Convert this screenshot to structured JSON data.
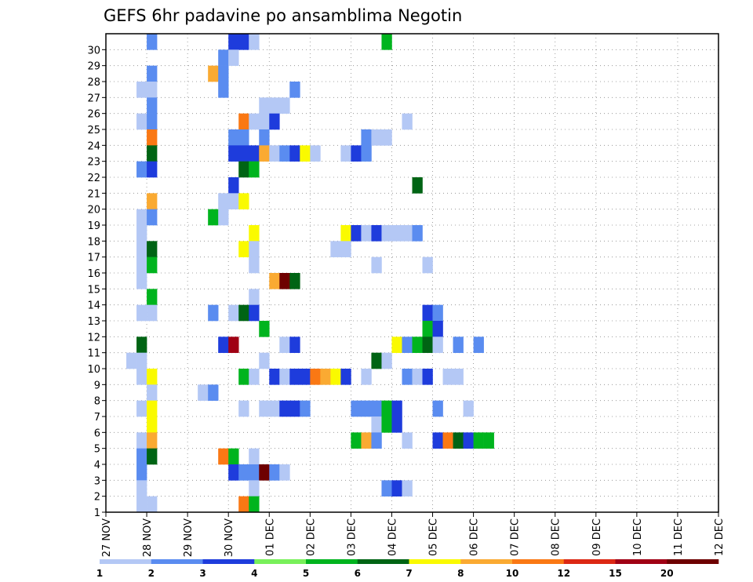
{
  "chart_data": {
    "type": "heatmap",
    "title": "GEFS 6hr padavine po ansamblima Negotin",
    "xlabel": "",
    "ylabel": "",
    "x_tick_labels": [
      "27 NOV",
      "28 NOV",
      "29 NOV",
      "30 NOV",
      "01 DEC",
      "02 DEC",
      "03 DEC",
      "04 DEC",
      "05 DEC",
      "06 DEC",
      "07 DEC",
      "08 DEC",
      "09 DEC",
      "10 DEC",
      "11 DEC",
      "12 DEC"
    ],
    "y_tick_labels": [
      "1",
      "2",
      "3",
      "4",
      "5",
      "6",
      "7",
      "8",
      "9",
      "10",
      "11",
      "12",
      "13",
      "14",
      "15",
      "16",
      "17",
      "18",
      "19",
      "20",
      "21",
      "22",
      "23",
      "24",
      "25",
      "26",
      "27",
      "28",
      "29",
      "30"
    ],
    "xlim": [
      0,
      60
    ],
    "ylim": [
      0,
      30
    ],
    "time_step_hours": 6,
    "grid": true,
    "colorbar": {
      "boundaries": [
        "1",
        "2",
        "3",
        "4",
        "5",
        "6",
        "7",
        "8",
        "10",
        "12",
        "15",
        "20"
      ],
      "colors": [
        "#b4c8f5",
        "#5a8cf0",
        "#1e3cdc",
        "#78f05a",
        "#00b41e",
        "#006414",
        "#fafa00",
        "#faaa32",
        "#fa7814",
        "#dc2814",
        "#a00014",
        "#6e0000"
      ]
    },
    "cells": [
      [
        4,
        30,
        2
      ],
      [
        12,
        30,
        3
      ],
      [
        13,
        30,
        3
      ],
      [
        14,
        30,
        1
      ],
      [
        27,
        30,
        5
      ],
      [
        11,
        29,
        2
      ],
      [
        12,
        29,
        1
      ],
      [
        4,
        28,
        2
      ],
      [
        10,
        28,
        8
      ],
      [
        11,
        28,
        2
      ],
      [
        3,
        27,
        1
      ],
      [
        4,
        27,
        1
      ],
      [
        11,
        27,
        2
      ],
      [
        18,
        27,
        2
      ],
      [
        4,
        26,
        2
      ],
      [
        15,
        26,
        1
      ],
      [
        16,
        26,
        1
      ],
      [
        17,
        26,
        1
      ],
      [
        3,
        25,
        1
      ],
      [
        4,
        25,
        2
      ],
      [
        13,
        25,
        9
      ],
      [
        14,
        25,
        1
      ],
      [
        15,
        25,
        1
      ],
      [
        16,
        25,
        3
      ],
      [
        29,
        25,
        1
      ],
      [
        4,
        24,
        9
      ],
      [
        12,
        24,
        2
      ],
      [
        13,
        24,
        2
      ],
      [
        15,
        24,
        2
      ],
      [
        25,
        24,
        2
      ],
      [
        26,
        24,
        1
      ],
      [
        27,
        24,
        1
      ],
      [
        4,
        23,
        6
      ],
      [
        12,
        23,
        3
      ],
      [
        13,
        23,
        3
      ],
      [
        14,
        23,
        3
      ],
      [
        15,
        23,
        8
      ],
      [
        16,
        23,
        1
      ],
      [
        17,
        23,
        2
      ],
      [
        18,
        23,
        3
      ],
      [
        19,
        23,
        7
      ],
      [
        20,
        23,
        1
      ],
      [
        23,
        23,
        1
      ],
      [
        24,
        23,
        3
      ],
      [
        25,
        23,
        2
      ],
      [
        3,
        22,
        2
      ],
      [
        4,
        22,
        3
      ],
      [
        13,
        22,
        6
      ],
      [
        14,
        22,
        5
      ],
      [
        12,
        21,
        3
      ],
      [
        30,
        21,
        6
      ],
      [
        4,
        20,
        8
      ],
      [
        11,
        20,
        1
      ],
      [
        12,
        20,
        1
      ],
      [
        13,
        20,
        7
      ],
      [
        3,
        19,
        1
      ],
      [
        4,
        19,
        2
      ],
      [
        10,
        19,
        5
      ],
      [
        11,
        19,
        1
      ],
      [
        3,
        18,
        1
      ],
      [
        14,
        18,
        7
      ],
      [
        23,
        18,
        7
      ],
      [
        24,
        18,
        3
      ],
      [
        25,
        18,
        1
      ],
      [
        26,
        18,
        3
      ],
      [
        27,
        18,
        1
      ],
      [
        28,
        18,
        1
      ],
      [
        29,
        18,
        1
      ],
      [
        30,
        18,
        2
      ],
      [
        3,
        17,
        1
      ],
      [
        4,
        17,
        6
      ],
      [
        13,
        17,
        7
      ],
      [
        14,
        17,
        1
      ],
      [
        22,
        17,
        1
      ],
      [
        23,
        17,
        1
      ],
      [
        3,
        16,
        1
      ],
      [
        4,
        16,
        5
      ],
      [
        14,
        16,
        1
      ],
      [
        26,
        16,
        1
      ],
      [
        31,
        16,
        1
      ],
      [
        3,
        15,
        1
      ],
      [
        16,
        15,
        8
      ],
      [
        17,
        15,
        12
      ],
      [
        18,
        15,
        6
      ],
      [
        4,
        14,
        5
      ],
      [
        14,
        14,
        1
      ],
      [
        3,
        13,
        1
      ],
      [
        4,
        13,
        1
      ],
      [
        10,
        13,
        2
      ],
      [
        12,
        13,
        1
      ],
      [
        13,
        13,
        6
      ],
      [
        14,
        13,
        3
      ],
      [
        31,
        13,
        3
      ],
      [
        32,
        13,
        2
      ],
      [
        15,
        12,
        5
      ],
      [
        31,
        12,
        5
      ],
      [
        32,
        12,
        3
      ],
      [
        3,
        11,
        6
      ],
      [
        11,
        11,
        3
      ],
      [
        12,
        11,
        11
      ],
      [
        17,
        11,
        1
      ],
      [
        18,
        11,
        3
      ],
      [
        28,
        11,
        7
      ],
      [
        29,
        11,
        2
      ],
      [
        30,
        11,
        5
      ],
      [
        31,
        11,
        6
      ],
      [
        32,
        11,
        1
      ],
      [
        34,
        11,
        2
      ],
      [
        36,
        11,
        2
      ],
      [
        2,
        10,
        1
      ],
      [
        3,
        10,
        1
      ],
      [
        15,
        10,
        1
      ],
      [
        26,
        10,
        6
      ],
      [
        27,
        10,
        1
      ],
      [
        3,
        9,
        1
      ],
      [
        4,
        9,
        7
      ],
      [
        13,
        9,
        5
      ],
      [
        14,
        9,
        1
      ],
      [
        16,
        9,
        3
      ],
      [
        17,
        9,
        1
      ],
      [
        18,
        9,
        3
      ],
      [
        19,
        9,
        3
      ],
      [
        20,
        9,
        9
      ],
      [
        21,
        9,
        8
      ],
      [
        22,
        9,
        7
      ],
      [
        23,
        9,
        3
      ],
      [
        25,
        9,
        1
      ],
      [
        29,
        9,
        2
      ],
      [
        30,
        9,
        1
      ],
      [
        31,
        9,
        3
      ],
      [
        33,
        9,
        1
      ],
      [
        34,
        9,
        1
      ],
      [
        4,
        8,
        1
      ],
      [
        9,
        8,
        1
      ],
      [
        10,
        8,
        2
      ],
      [
        3,
        7,
        1
      ],
      [
        4,
        7,
        7
      ],
      [
        13,
        7,
        1
      ],
      [
        15,
        7,
        1
      ],
      [
        16,
        7,
        1
      ],
      [
        17,
        7,
        3
      ],
      [
        18,
        7,
        3
      ],
      [
        19,
        7,
        2
      ],
      [
        24,
        7,
        2
      ],
      [
        25,
        7,
        2
      ],
      [
        26,
        7,
        2
      ],
      [
        27,
        7,
        5
      ],
      [
        28,
        7,
        3
      ],
      [
        32,
        7,
        2
      ],
      [
        35,
        7,
        1
      ],
      [
        4,
        6,
        7
      ],
      [
        26,
        6,
        1
      ],
      [
        27,
        6,
        5
      ],
      [
        28,
        6,
        3
      ],
      [
        3,
        5,
        1
      ],
      [
        4,
        5,
        8
      ],
      [
        24,
        5,
        5
      ],
      [
        25,
        5,
        8
      ],
      [
        26,
        5,
        2
      ],
      [
        29,
        5,
        1
      ],
      [
        32,
        5,
        3
      ],
      [
        33,
        5,
        9
      ],
      [
        34,
        5,
        6
      ],
      [
        35,
        5,
        3
      ],
      [
        36,
        5,
        5
      ],
      [
        37,
        5,
        5
      ],
      [
        3,
        4,
        2
      ],
      [
        4,
        4,
        6
      ],
      [
        11,
        4,
        9
      ],
      [
        12,
        4,
        5
      ],
      [
        14,
        4,
        1
      ],
      [
        3,
        3,
        2
      ],
      [
        12,
        3,
        3
      ],
      [
        13,
        3,
        2
      ],
      [
        14,
        3,
        2
      ],
      [
        15,
        3,
        12
      ],
      [
        16,
        3,
        2
      ],
      [
        17,
        3,
        1
      ],
      [
        3,
        2,
        1
      ],
      [
        14,
        2,
        1
      ],
      [
        27,
        2,
        2
      ],
      [
        28,
        2,
        3
      ],
      [
        29,
        2,
        1
      ],
      [
        3,
        1,
        1
      ],
      [
        4,
        1,
        1
      ],
      [
        13,
        1,
        9
      ],
      [
        14,
        1,
        5
      ]
    ]
  }
}
